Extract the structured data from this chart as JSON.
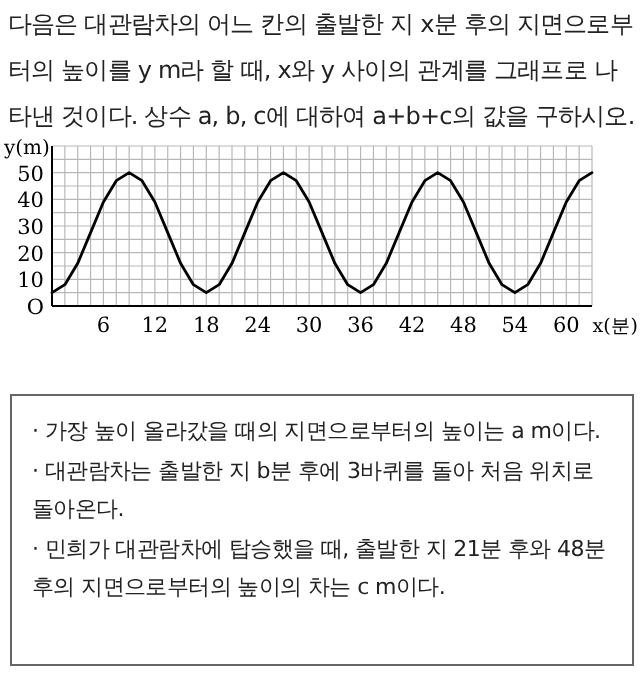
{
  "chart_data": {
    "type": "line",
    "title": "다음은 대관람차의 어느 칸의 출발한 지 x분 후의 지면으로부터의 높이를 y m라 할 때, x와 y 사이의 관계를 그래프로 나타낸 것이다. 상수 a, b, c에 대하여 a+b+c의 값을 구하시오.",
    "xlabel": "x(분)",
    "ylabel": "y(m)",
    "x": [
      0,
      1.5,
      3,
      4.5,
      6,
      7.5,
      9,
      10.5,
      12,
      13.5,
      15,
      16.5,
      18,
      19.5,
      21,
      22.5,
      24,
      25.5,
      27,
      28.5,
      30,
      31.5,
      33,
      34.5,
      36,
      37.5,
      39,
      40.5,
      42,
      43.5,
      45,
      46.5,
      48,
      49.5,
      51,
      52.5,
      54,
      55.5,
      57,
      58.5,
      60,
      61.5,
      63
    ],
    "values": [
      5,
      8,
      16,
      27.5,
      39,
      47,
      50,
      47,
      39,
      27.5,
      16,
      8,
      5,
      8,
      16,
      27.5,
      39,
      47,
      50,
      47,
      39,
      27.5,
      16,
      8,
      5,
      8,
      16,
      27.5,
      39,
      47,
      50,
      47,
      39,
      27.5,
      16,
      8,
      5,
      8,
      16,
      27.5,
      39,
      47,
      50
    ],
    "color": "#000000",
    "xlim": [
      0,
      63
    ],
    "ylim": [
      0,
      60
    ],
    "xticks": [
      {
        "value": 0,
        "label": null
      },
      {
        "value": 1.5,
        "label": null
      },
      {
        "value": 3,
        "label": null
      },
      {
        "value": 4.5,
        "label": null
      },
      6,
      {
        "value": 7.5,
        "label": null
      },
      {
        "value": 9,
        "label": null
      },
      {
        "value": 10.5,
        "label": null
      },
      12,
      {
        "value": 13.5,
        "label": null
      },
      {
        "value": 15,
        "label": null
      },
      {
        "value": 16.5,
        "label": null
      },
      18,
      {
        "value": 19.5,
        "label": null
      },
      {
        "value": 21,
        "label": null
      },
      {
        "value": 22.5,
        "label": null
      },
      24,
      {
        "value": 25.5,
        "label": null
      },
      {
        "value": 27,
        "label": null
      },
      {
        "value": 28.5,
        "label": null
      },
      30,
      {
        "value": 31.5,
        "label": null
      },
      {
        "value": 33,
        "label": null
      },
      {
        "value": 34.5,
        "label": null
      },
      36,
      {
        "value": 37.5,
        "label": null
      },
      {
        "value": 39,
        "label": null
      },
      {
        "value": 40.5,
        "label": null
      },
      42,
      {
        "value": 43.5,
        "label": null
      },
      {
        "value": 45,
        "label": null
      },
      {
        "value": 46.5,
        "label": null
      },
      48,
      {
        "value": 49.5,
        "label": null
      },
      {
        "value": 51,
        "label": null
      },
      {
        "value": 52.5,
        "label": null
      },
      54,
      {
        "value": 55.5,
        "label": null
      },
      {
        "value": 57,
        "label": null
      },
      {
        "value": 58.5,
        "label": null
      },
      60,
      {
        "value": 61.5,
        "label": null
      },
      {
        "value": 63,
        "label": null
      }
    ],
    "yticks": [
      {
        "value": 0,
        "label": "O"
      },
      {
        "value": 5,
        "label": null
      },
      10,
      {
        "value": 15,
        "label": null
      },
      20,
      {
        "value": 25,
        "label": null
      },
      30,
      {
        "value": 35,
        "label": null
      },
      40,
      {
        "value": 45,
        "label": null
      },
      50,
      {
        "value": 55,
        "label": null
      },
      {
        "value": 60,
        "label": null
      }
    ],
    "grid": true,
    "marker": "none",
    "line_style": "solid",
    "annotations": [
      "· 가장 높이 올라갔을 때의 지면으로부터의 높이는 a m이다.",
      "· 대관람차는 출발한 지 b분 후에 3바퀴를 돌아 처음 위치로 돌아온다.",
      "· 민희가 대관람차에 탑승했을 때, 출발한 지 21분 후와 48분 후의 지면으로부터의 높이의 차는 c m이다."
    ]
  }
}
